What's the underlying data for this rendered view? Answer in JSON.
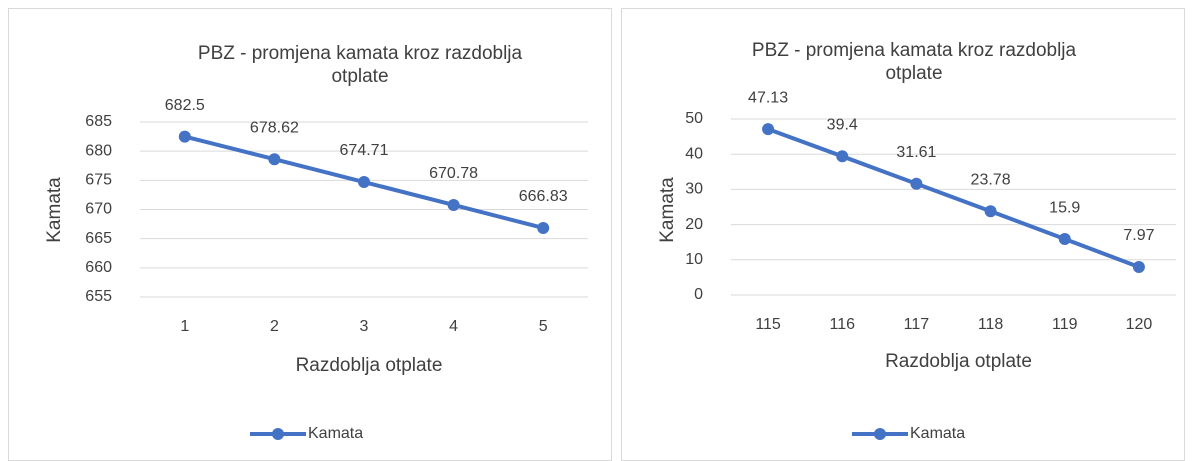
{
  "chart_data": [
    {
      "type": "line",
      "title": "PBZ - promjena kamata kroz razdoblja otplate",
      "x_label": "Razdoblja otplate",
      "y_label": "Kamata",
      "categories": [
        "1",
        "2",
        "3",
        "4",
        "5"
      ],
      "series": [
        {
          "name": "Kamata",
          "color": "#4472c4",
          "values": [
            682.5,
            678.62,
            674.71,
            670.78,
            666.83
          ]
        }
      ],
      "ylim": [
        655,
        685
      ],
      "yticks": [
        655,
        660,
        665,
        670,
        675,
        680,
        685
      ],
      "grid": true,
      "legend": "bottom"
    },
    {
      "type": "line",
      "title": "PBZ - promjena kamata kroz razdoblja otplate",
      "x_label": "Razdoblja otplate",
      "y_label": "Kamata",
      "categories": [
        "115",
        "116",
        "117",
        "118",
        "119",
        "120"
      ],
      "series": [
        {
          "name": "Kamata",
          "color": "#4472c4",
          "values": [
            47.13,
            39.4,
            31.61,
            23.78,
            15.9,
            7.97
          ]
        }
      ],
      "ylim": [
        0,
        50
      ],
      "yticks": [
        0,
        10,
        20,
        30,
        40,
        50
      ],
      "grid": true,
      "legend": "bottom"
    }
  ]
}
